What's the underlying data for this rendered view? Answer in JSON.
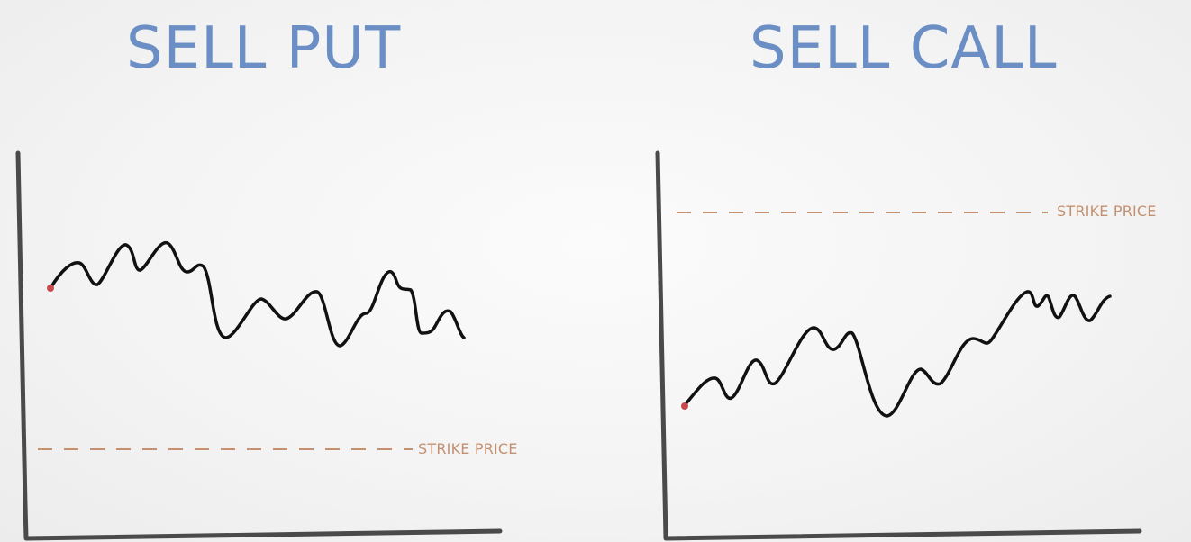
{
  "colors": {
    "title": "#6b8fc4",
    "axis": "#4a4a4a",
    "price_line": "#111111",
    "strike": "#c49070",
    "start_dot": "#c84a4f"
  },
  "panels": [
    {
      "title": "SELL PUT",
      "strike_label": "STRIKE PRICE",
      "strike_position": "below price path"
    },
    {
      "title": "SELL CALL",
      "strike_label": "STRIKE PRICE",
      "strike_position": "above price path"
    }
  ]
}
